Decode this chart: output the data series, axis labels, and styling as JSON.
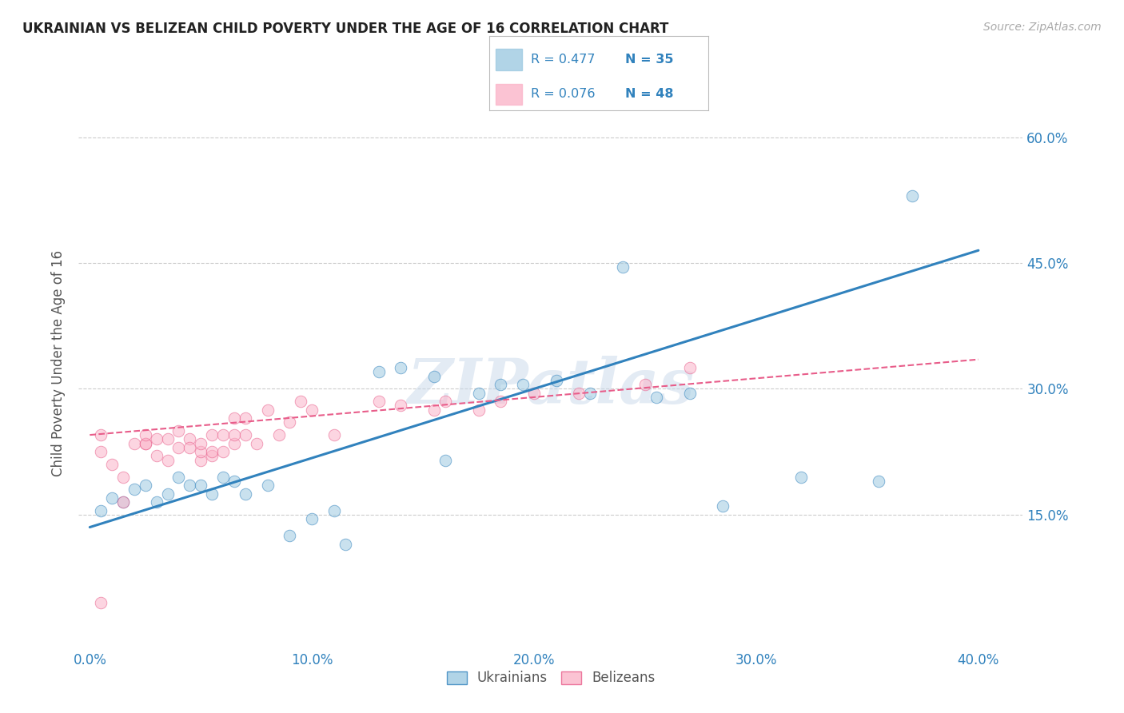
{
  "title": "UKRAINIAN VS BELIZEAN CHILD POVERTY UNDER THE AGE OF 16 CORRELATION CHART",
  "source": "Source: ZipAtlas.com",
  "ylabel": "Child Poverty Under the Age of 16",
  "xlabel_ticks": [
    "0.0%",
    "10.0%",
    "20.0%",
    "30.0%",
    "40.0%"
  ],
  "xlabel_vals": [
    0.0,
    0.1,
    0.2,
    0.3,
    0.4
  ],
  "ylabel_ticks": [
    "15.0%",
    "30.0%",
    "45.0%",
    "60.0%"
  ],
  "ylabel_vals": [
    0.15,
    0.3,
    0.45,
    0.6
  ],
  "xlim": [
    -0.005,
    0.42
  ],
  "ylim": [
    -0.01,
    0.67
  ],
  "watermark": "ZIPatlas",
  "legend_entries": [
    {
      "label": "Ukrainians",
      "R": "0.477",
      "N": "35",
      "color": "#9ecae1"
    },
    {
      "label": "Belizeans",
      "R": "0.076",
      "N": "48",
      "color": "#fbb4c9"
    }
  ],
  "ukrainian_scatter_x": [
    0.005,
    0.01,
    0.015,
    0.02,
    0.025,
    0.03,
    0.035,
    0.04,
    0.045,
    0.05,
    0.055,
    0.06,
    0.065,
    0.07,
    0.08,
    0.09,
    0.1,
    0.11,
    0.115,
    0.13,
    0.14,
    0.155,
    0.16,
    0.175,
    0.185,
    0.195,
    0.21,
    0.225,
    0.24,
    0.255,
    0.27,
    0.285,
    0.32,
    0.355,
    0.37
  ],
  "ukrainian_scatter_y": [
    0.155,
    0.17,
    0.165,
    0.18,
    0.185,
    0.165,
    0.175,
    0.195,
    0.185,
    0.185,
    0.175,
    0.195,
    0.19,
    0.175,
    0.185,
    0.125,
    0.145,
    0.155,
    0.115,
    0.32,
    0.325,
    0.315,
    0.215,
    0.295,
    0.305,
    0.305,
    0.31,
    0.295,
    0.445,
    0.29,
    0.295,
    0.16,
    0.195,
    0.19,
    0.53
  ],
  "belizean_scatter_x": [
    0.005,
    0.005,
    0.01,
    0.015,
    0.015,
    0.02,
    0.025,
    0.025,
    0.025,
    0.03,
    0.03,
    0.035,
    0.035,
    0.04,
    0.04,
    0.045,
    0.045,
    0.05,
    0.05,
    0.05,
    0.055,
    0.055,
    0.055,
    0.06,
    0.06,
    0.065,
    0.065,
    0.065,
    0.07,
    0.07,
    0.075,
    0.08,
    0.085,
    0.09,
    0.095,
    0.1,
    0.11,
    0.13,
    0.14,
    0.155,
    0.16,
    0.175,
    0.185,
    0.2,
    0.22,
    0.25,
    0.27,
    0.005
  ],
  "belizean_scatter_y": [
    0.225,
    0.245,
    0.21,
    0.195,
    0.165,
    0.235,
    0.235,
    0.235,
    0.245,
    0.24,
    0.22,
    0.215,
    0.24,
    0.23,
    0.25,
    0.24,
    0.23,
    0.215,
    0.225,
    0.235,
    0.22,
    0.225,
    0.245,
    0.225,
    0.245,
    0.235,
    0.245,
    0.265,
    0.245,
    0.265,
    0.235,
    0.275,
    0.245,
    0.26,
    0.285,
    0.275,
    0.245,
    0.285,
    0.28,
    0.275,
    0.285,
    0.275,
    0.285,
    0.295,
    0.295,
    0.305,
    0.325,
    0.045
  ],
  "ukr_line_x": [
    0.0,
    0.4
  ],
  "ukr_line_y": [
    0.135,
    0.465
  ],
  "bel_line_x": [
    0.0,
    0.4
  ],
  "bel_line_y": [
    0.245,
    0.335
  ],
  "scatter_size": 110,
  "scatter_alpha": 0.55,
  "line_color_ukr": "#3182bd",
  "line_color_bel": "#e85d8a",
  "scatter_color_ukr": "#9ecae1",
  "scatter_color_bel": "#fbb4c9",
  "grid_color": "#cccccc",
  "tick_color": "#3182bd",
  "rn_color": "#3182bd",
  "background": "#ffffff"
}
